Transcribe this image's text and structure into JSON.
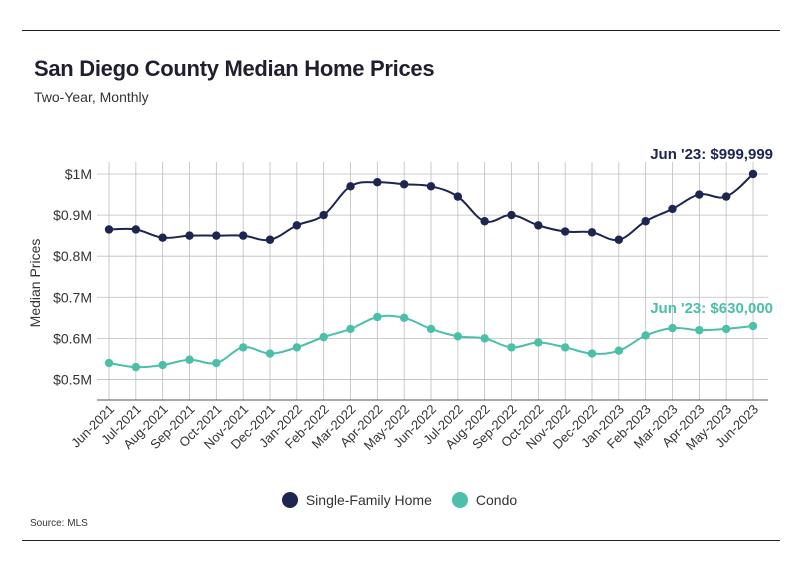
{
  "title": "San Diego County Median Home Prices",
  "subtitle": "Two-Year, Monthly",
  "source": "Source:  MLS",
  "colors": {
    "single_family": "#1d2550",
    "condo": "#4cbfa8",
    "grid": "#bdbdbd",
    "axis": "#555555"
  },
  "chart_data": {
    "type": "line",
    "title": "San Diego County Median Home Prices",
    "subtitle": "Two-Year, Monthly",
    "ylabel": "Median Prices",
    "xlabel": "",
    "ylim": [
      450000,
      1000000
    ],
    "yticks": [
      500000,
      600000,
      700000,
      800000,
      900000,
      1000000
    ],
    "ytick_labels": [
      "$0.5M",
      "$0.6M",
      "$0.7M",
      "$0.8M",
      "$0.9M",
      "$1M"
    ],
    "categories": [
      "Jun-2021",
      "Jul-2021",
      "Aug-2021",
      "Sep-2021",
      "Oct-2021",
      "Nov-2021",
      "Dec-2021",
      "Jan-2022",
      "Feb-2022",
      "Mar-2022",
      "Apr-2022",
      "May-2022",
      "Jun-2022",
      "Jul-2022",
      "Aug-2022",
      "Sep-2022",
      "Oct-2022",
      "Nov-2022",
      "Dec-2022",
      "Jan-2023",
      "Feb-2023",
      "Mar-2023",
      "Apr-2023",
      "May-2023",
      "Jun-2023"
    ],
    "series": [
      {
        "name": "Single-Family Home",
        "color": "#1d2550",
        "values": [
          865000,
          865000,
          845000,
          850000,
          850000,
          850000,
          840000,
          875000,
          900000,
          970000,
          980000,
          975000,
          970000,
          945000,
          885000,
          900000,
          875000,
          860000,
          858000,
          840000,
          885000,
          915000,
          950000,
          945000,
          999999
        ]
      },
      {
        "name": "Condo",
        "color": "#4cbfa8",
        "values": [
          540000,
          530000,
          535000,
          548000,
          540000,
          578000,
          563000,
          578000,
          603000,
          623000,
          652000,
          650000,
          623000,
          605000,
          600000,
          578000,
          590000,
          578000,
          563000,
          570000,
          607000,
          625000,
          620000,
          623000,
          630000
        ]
      }
    ],
    "annotations": [
      {
        "series": 0,
        "index": 24,
        "text": "Jun '23: $999,999"
      },
      {
        "series": 1,
        "index": 24,
        "text": "Jun '23: $630,000"
      }
    ],
    "legend": {
      "position": "bottom-center",
      "items": [
        "Single-Family Home",
        "Condo"
      ]
    },
    "grid": true
  }
}
